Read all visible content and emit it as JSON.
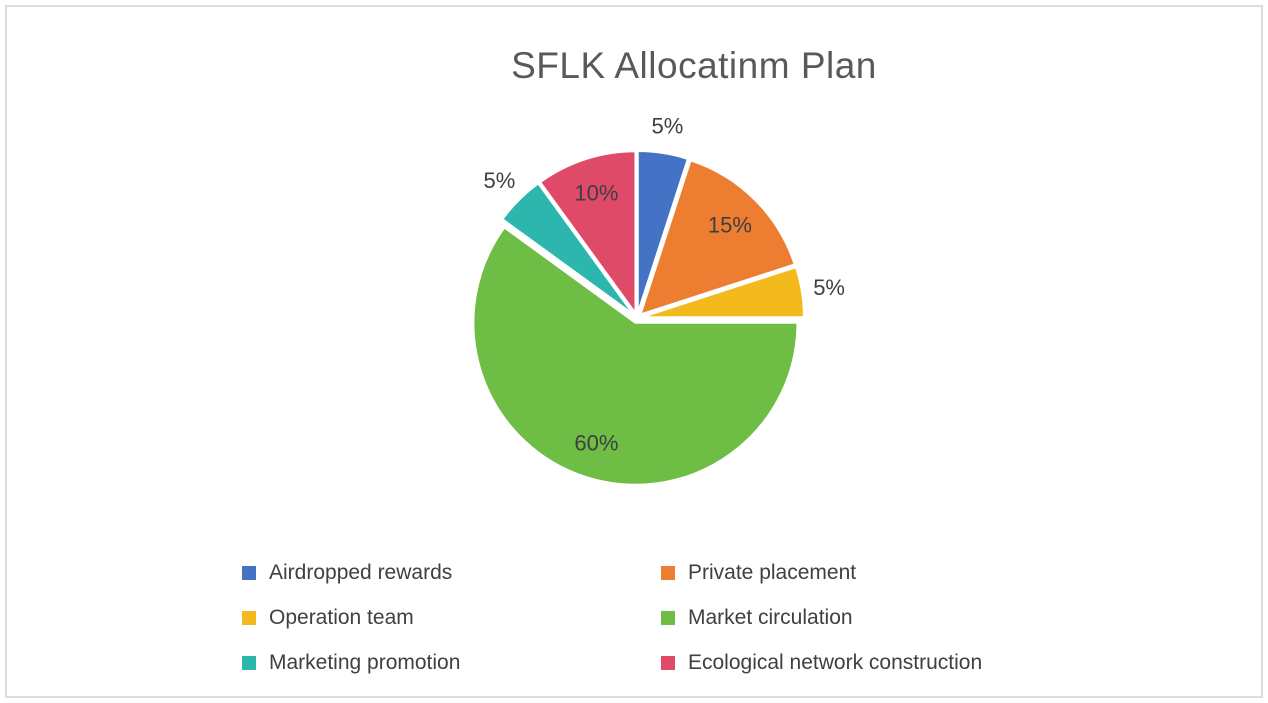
{
  "chart_data": {
    "type": "pie",
    "title": "SFLK Allocatinm Plan",
    "title_color": "#595959",
    "label_color": "#3f3f3f",
    "legend_text_color": "#404040",
    "start_angle_deg": 0,
    "direction": "clockwise",
    "legend": {
      "position": "bottom",
      "columns": 2
    },
    "slices": [
      {
        "label": "Airdropped rewards",
        "value": 5,
        "pct_label": "5%",
        "color": "#4472c4",
        "label_inside": false
      },
      {
        "label": "Private placement",
        "value": 15,
        "pct_label": "15%",
        "color": "#ed7d31",
        "label_inside": true
      },
      {
        "label": "Operation team",
        "value": 5,
        "pct_label": "5%",
        "color": "#f2ba1d",
        "label_inside": false
      },
      {
        "label": "Market circulation",
        "value": 60,
        "pct_label": "60%",
        "color": "#6ebd45",
        "label_inside": true
      },
      {
        "label": "Marketing promotion",
        "value": 5,
        "pct_label": "5%",
        "color": "#2cb6ad",
        "label_inside": false
      },
      {
        "label": "Ecological network construction",
        "value": 10,
        "pct_label": "10%",
        "color": "#e04a69",
        "label_inside": true
      }
    ]
  }
}
